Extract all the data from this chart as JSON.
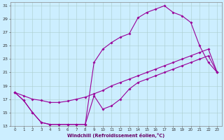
{
  "xlabel": "Windchill (Refroidissement éolien,°C)",
  "background_color": "#cceeff",
  "grid_color": "#aacccc",
  "line_color": "#990099",
  "xlim": [
    -0.5,
    23.5
  ],
  "ylim": [
    13,
    31.5
  ],
  "yticks": [
    13,
    15,
    17,
    19,
    21,
    23,
    25,
    27,
    29,
    31
  ],
  "xticks": [
    0,
    1,
    2,
    3,
    4,
    5,
    6,
    7,
    8,
    9,
    10,
    11,
    12,
    13,
    14,
    15,
    16,
    17,
    18,
    19,
    20,
    21,
    22,
    23
  ],
  "line1_x": [
    0,
    1,
    2,
    3,
    4,
    5,
    6,
    7,
    8,
    9,
    10,
    11,
    12,
    13,
    14,
    15,
    16,
    17,
    18,
    19,
    20,
    21,
    22,
    23
  ],
  "line1_y": [
    18.0,
    16.8,
    15.0,
    13.5,
    13.2,
    13.2,
    13.2,
    13.2,
    13.2,
    17.5,
    15.5,
    16.0,
    17.0,
    18.5,
    19.5,
    20.0,
    20.5,
    21.0,
    21.5,
    22.0,
    22.5,
    23.0,
    23.5,
    21.0
  ],
  "line2_x": [
    0,
    1,
    2,
    3,
    4,
    5,
    6,
    7,
    8,
    9,
    10,
    11,
    12,
    13,
    14,
    15,
    16,
    17,
    18,
    19,
    20,
    21,
    22,
    23
  ],
  "line2_y": [
    18.0,
    16.8,
    15.0,
    13.5,
    13.2,
    13.2,
    13.2,
    13.2,
    13.2,
    22.5,
    24.5,
    25.5,
    26.3,
    26.8,
    29.2,
    30.0,
    30.5,
    31.0,
    30.0,
    29.5,
    28.5,
    25.0,
    22.5,
    21.0
  ],
  "line3_x": [
    0,
    1,
    2,
    3,
    4,
    5,
    6,
    7,
    8,
    9,
    10,
    11,
    12,
    13,
    14,
    15,
    16,
    17,
    18,
    19,
    20,
    21,
    22,
    23
  ],
  "line3_y": [
    18.0,
    17.5,
    17.0,
    16.8,
    16.5,
    16.5,
    16.7,
    17.0,
    17.3,
    17.8,
    18.3,
    19.0,
    19.5,
    20.0,
    20.5,
    21.0,
    21.5,
    22.0,
    22.5,
    23.0,
    23.5,
    24.0,
    24.5,
    21.0
  ]
}
